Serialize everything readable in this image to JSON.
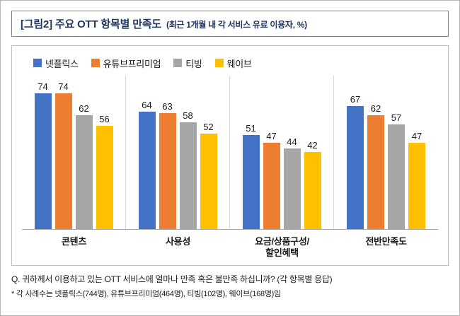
{
  "header": {
    "title": "[그림2] 주요 OTT 항목별 만족도",
    "subtitle": "(최근 1개월 내 각 서비스 유료 이용자, %)"
  },
  "chart_data": {
    "type": "bar",
    "title": "[그림2] 주요 OTT 항목별 만족도 (최근 1개월 내 각 서비스 유료 이용자, %)",
    "categories": [
      "콘텐츠",
      "사용성",
      "요금/상품구성/\n할인혜택",
      "전반만족도"
    ],
    "series": [
      {
        "name": "넷플릭스",
        "color": "#4472C4",
        "values": [
          74,
          64,
          51,
          67
        ]
      },
      {
        "name": "유튜브프리미엄",
        "color": "#ED7D31",
        "values": [
          74,
          63,
          47,
          62
        ]
      },
      {
        "name": "티빙",
        "color": "#A6A6A6",
        "values": [
          62,
          58,
          44,
          57
        ]
      },
      {
        "name": "웨이브",
        "color": "#FFC000",
        "values": [
          56,
          52,
          42,
          47
        ]
      }
    ],
    "xlabel": "",
    "ylabel": "",
    "ylim": [
      0,
      80
    ],
    "grid": false,
    "legend_position": "top-left",
    "value_labels": true,
    "axis_line_color": "#a6a6a6",
    "separator_color": "#d9d9d9"
  },
  "footer": {
    "question": "Q. 귀하께서 이용하고 있는 OTT 서비스에 얼마나 만족 혹은 불만족 하십니까?  (각 항목별 응답)",
    "note": "* 각 사례수는 넷플릭스(744명), 유튜브프리미엄(464명), 티빙(102명), 웨이브(168명)임"
  }
}
